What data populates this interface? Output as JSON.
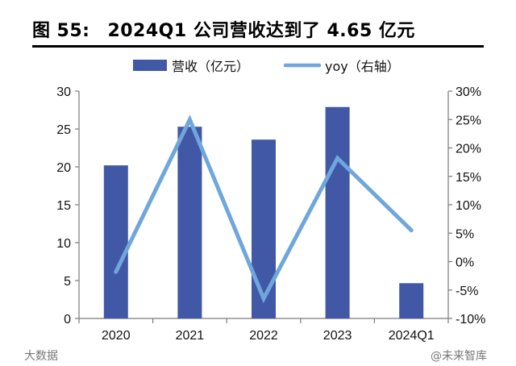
{
  "figure": {
    "label": "图",
    "number": "55:",
    "title": "2024Q1 公司营收达到了 4.65 亿元"
  },
  "chart_data": {
    "type": "bar",
    "categories": [
      "2020",
      "2021",
      "2022",
      "2023",
      "2024Q1"
    ],
    "series": [
      {
        "name": "营收（亿元）",
        "type": "bar",
        "axis": "left",
        "color": "#4158a6",
        "values": [
          20.2,
          25.3,
          23.6,
          27.9,
          4.65
        ]
      },
      {
        "name": "yoy（右轴）",
        "type": "line",
        "axis": "right",
        "color": "#6fa6dc",
        "values": [
          -1.8,
          25.0,
          -6.5,
          18.2,
          5.5
        ]
      }
    ],
    "y_left": {
      "min": 0,
      "max": 30,
      "ticks": [
        "0",
        "5",
        "10",
        "15",
        "20",
        "25",
        "30"
      ]
    },
    "y_right": {
      "min": -10,
      "max": 30,
      "ticks": [
        "-10%",
        "-5%",
        "0%",
        "5%",
        "10%",
        "15%",
        "20%",
        "25%",
        "30%"
      ]
    },
    "legend_position": "top",
    "grid": false
  },
  "watermarks": {
    "left": "大数据",
    "right": "@未来智库"
  }
}
